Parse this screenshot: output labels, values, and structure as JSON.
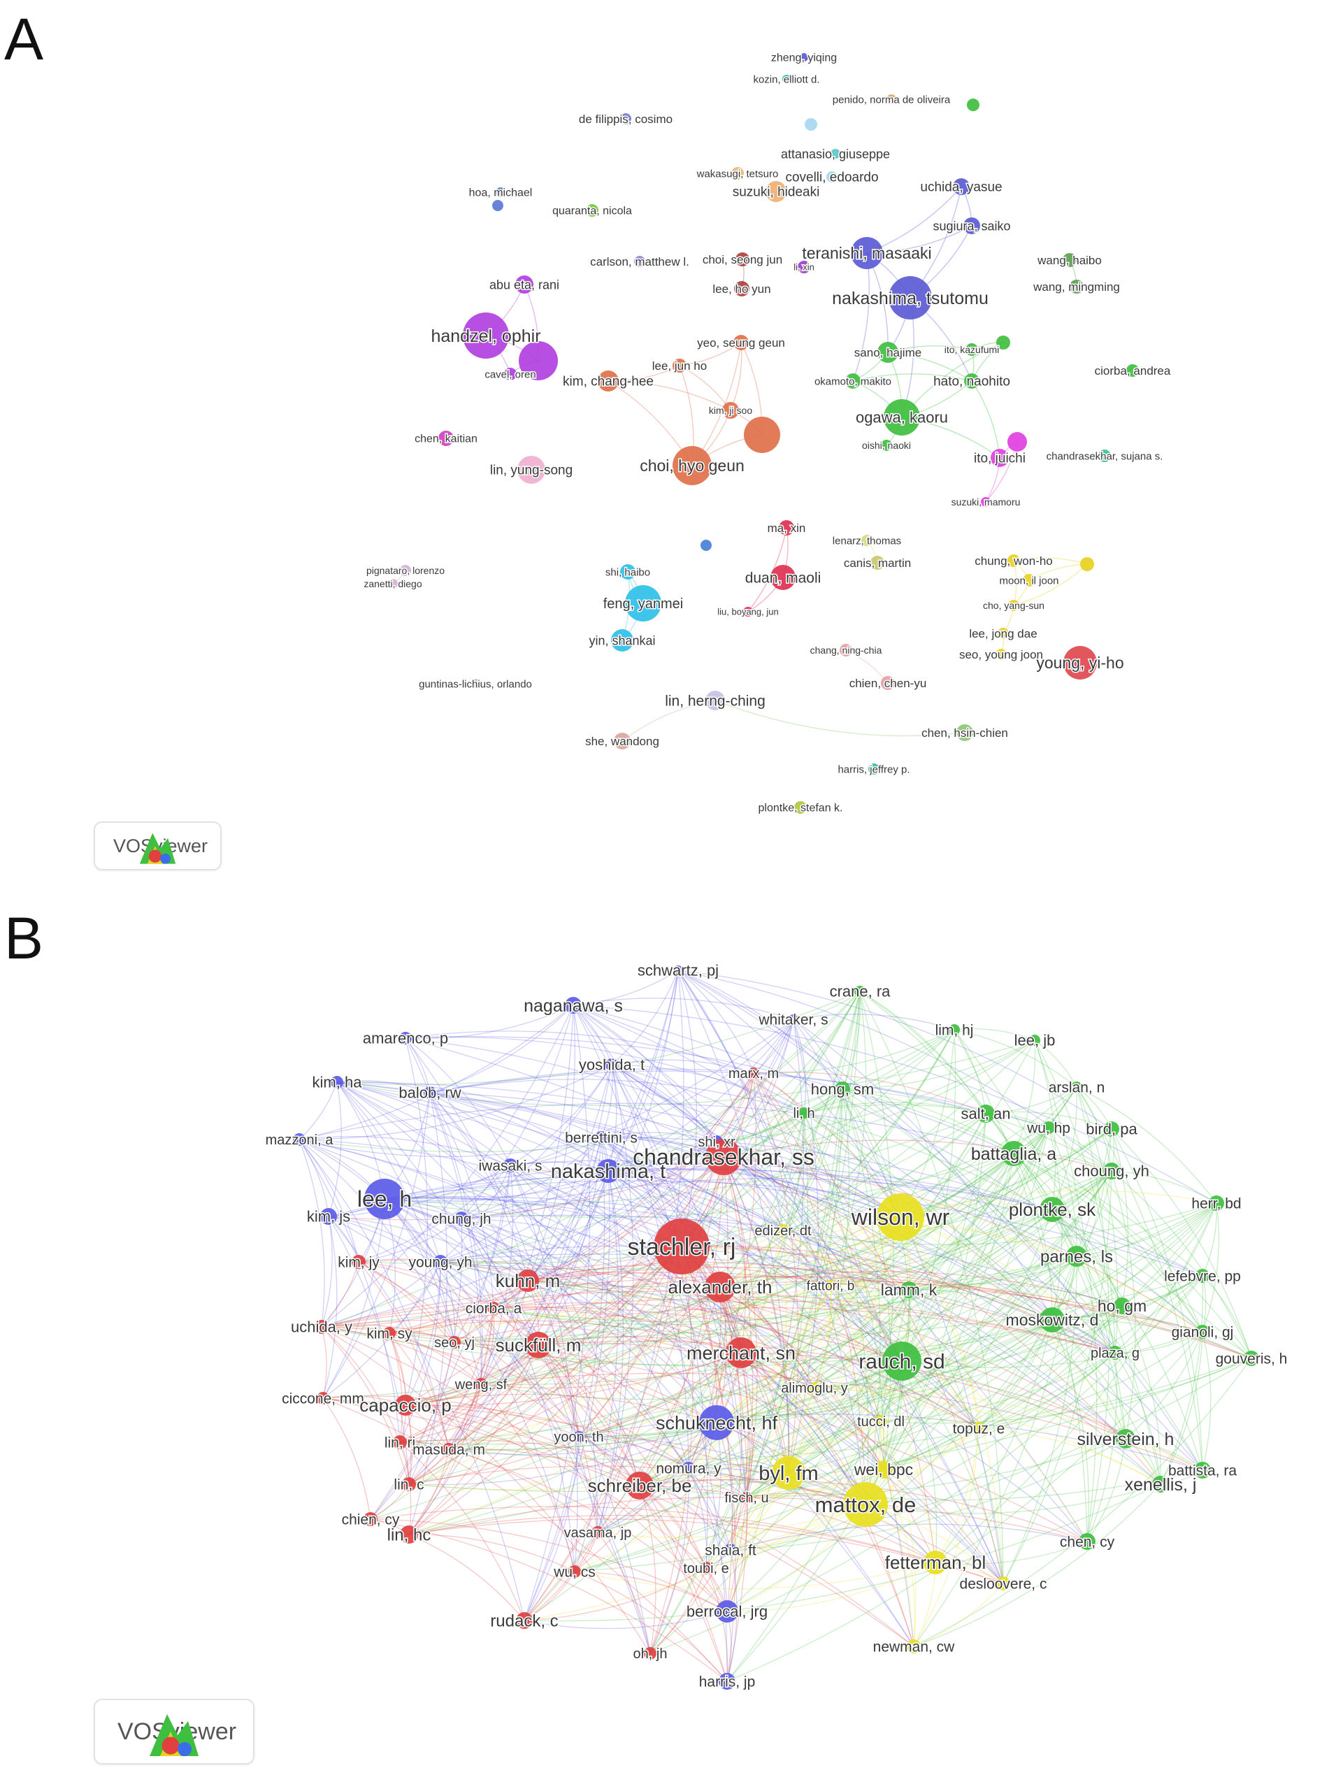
{
  "panels": [
    {
      "letter": "A",
      "logo_text": "VOSviewer",
      "nodes": [
        {
          "label": "zheng, yiqing",
          "c": "#5b5bd6"
        },
        {
          "label": "kozin, elliott d.",
          "c": "#2bb7b3"
        },
        {
          "label": "penido, norma de oliveira",
          "c": "#d8a860"
        },
        {
          "label": "",
          "c": "#3fbf3f"
        },
        {
          "label": "de filippis, cosimo",
          "c": "#7a7ad8"
        },
        {
          "label": "",
          "c": "#a6d8f0"
        },
        {
          "label": "attanasio, giuseppe",
          "c": "#5ec8c8"
        },
        {
          "label": "wakasugi, tetsuro",
          "c": "#e8b870"
        },
        {
          "label": "covelli, edoardo",
          "c": "#a6d8f0"
        },
        {
          "label": "suzuki, hideaki",
          "c": "#f0b070"
        },
        {
          "label": "hoa, michael",
          "c": "#5b7ad6"
        },
        {
          "label": "",
          "c": "#5b7ad6"
        },
        {
          "label": "quaranta, nicola",
          "c": "#7ac83a"
        },
        {
          "label": "uchida, yasue",
          "c": "#5b5bd6"
        },
        {
          "label": "sugiura, saiko",
          "c": "#5b5bd6"
        },
        {
          "label": "teranishi, masaaki",
          "c": "#5b5bd6"
        },
        {
          "label": "nakashima, tsutomu",
          "c": "#5b5bd6"
        },
        {
          "label": "li, xin",
          "c": "#a040d0"
        },
        {
          "label": "carlson, matthew l.",
          "c": "#a080d8"
        },
        {
          "label": "choi, seong jun",
          "c": "#b04040"
        },
        {
          "label": "lee, ho yun",
          "c": "#b04040"
        },
        {
          "label": "abu eta, rani",
          "c": "#b040e0"
        },
        {
          "label": "handzel, ophir",
          "c": "#b040e0"
        },
        {
          "label": "cavel, oren",
          "c": "#b040e0"
        },
        {
          "label": "",
          "c": "#b040e0"
        },
        {
          "label": "wang, haibo",
          "c": "#5ea050"
        },
        {
          "label": "wang, mingming",
          "c": "#5ea050"
        },
        {
          "label": "yeo, seung geun",
          "c": "#e0704a"
        },
        {
          "label": "lee, jun ho",
          "c": "#e0704a"
        },
        {
          "label": "kim, chang-hee",
          "c": "#e0704a"
        },
        {
          "label": "kim, ji soo",
          "c": "#e0704a"
        },
        {
          "label": "choi, hyo geun",
          "c": "#e0704a"
        },
        {
          "label": "",
          "c": "#e0704a"
        },
        {
          "label": "sano, hajime",
          "c": "#3fbf3f"
        },
        {
          "label": "ito, kazufumi",
          "c": "#3fbf3f"
        },
        {
          "label": "okamoto, makito",
          "c": "#3fbf3f"
        },
        {
          "label": "hato, naohito",
          "c": "#3fbf3f"
        },
        {
          "label": "ogawa, kaoru",
          "c": "#3fbf3f"
        },
        {
          "label": "oishi, naoki",
          "c": "#3fbf3f"
        },
        {
          "label": "",
          "c": "#3fbf3f"
        },
        {
          "label": "ciorba, andrea",
          "c": "#3fbf3f"
        },
        {
          "label": "chen, kaitian",
          "c": "#d040c0"
        },
        {
          "label": "lin, yung-song",
          "c": "#f0b0d0"
        },
        {
          "label": "ito, juichi",
          "c": "#e040e0"
        },
        {
          "label": "",
          "c": "#e040e0"
        },
        {
          "label": "chandrasekhar, sujana s.",
          "c": "#3fc09a"
        },
        {
          "label": "suzuki, mamoru",
          "c": "#e040e0"
        },
        {
          "label": "ma, xin",
          "c": "#e03050"
        },
        {
          "label": "duan, maoli",
          "c": "#e03050"
        },
        {
          "label": "liu, boyang, jun",
          "c": "#e03050"
        },
        {
          "label": "lenarz, thomas",
          "c": "#d8d880"
        },
        {
          "label": "canis, martin",
          "c": "#c8c870"
        },
        {
          "label": "chung, won-ho",
          "c": "#e8d020"
        },
        {
          "label": "moon, il joon",
          "c": "#e8d020"
        },
        {
          "label": "",
          "c": "#e8d020"
        },
        {
          "label": "cho, yang-sun",
          "c": "#e8d020"
        },
        {
          "label": "lee, jong dae",
          "c": "#e8d020"
        },
        {
          "label": "seo, young joon",
          "c": "#e8d020"
        },
        {
          "label": "pignataro, lorenzo",
          "c": "#d8b0d8"
        },
        {
          "label": "zanetti, diego",
          "c": "#d8b0d8"
        },
        {
          "label": "shi, haibo",
          "c": "#30c0e8"
        },
        {
          "label": "feng, yanmei",
          "c": "#30c0e8"
        },
        {
          "label": "yin, shankai",
          "c": "#30c0e8"
        },
        {
          "label": "",
          "c": "#4a80d8"
        },
        {
          "label": "chang, ning-chia",
          "c": "#e8a0a0"
        },
        {
          "label": "chien, chen-yu",
          "c": "#e8a0a0"
        },
        {
          "label": "young, yi-ho",
          "c": "#e04850"
        },
        {
          "label": "guntinas-lichius, orlando",
          "c": "#d8b0d8"
        },
        {
          "label": "lin, herng-ching",
          "c": "#c8c0e8"
        },
        {
          "label": "she, wandong",
          "c": "#d8a8a0"
        },
        {
          "label": "chen, hsin-chien",
          "c": "#8ac870"
        },
        {
          "label": "harris, jeffrey p.",
          "c": "#30c0b0"
        },
        {
          "label": "plontke, stefan k.",
          "c": "#b0c840"
        }
      ]
    },
    {
      "letter": "B",
      "logo_text": "VOSviewer",
      "nodes": [
        {
          "label": "schwartz, pj",
          "c": "#5b5be8"
        },
        {
          "label": "crane, ra",
          "c": "#3fbf3f"
        },
        {
          "label": "naganawa, s",
          "c": "#5b5be8"
        },
        {
          "label": "whitaker, s",
          "c": "#5b5be8"
        },
        {
          "label": "lim, hj",
          "c": "#3fbf3f"
        },
        {
          "label": "amarenco, p",
          "c": "#5b5be8"
        },
        {
          "label": "lee, jb",
          "c": "#3fbf3f"
        },
        {
          "label": "yoshida, t",
          "c": "#5b5be8"
        },
        {
          "label": "marx, m",
          "c": "#e04040"
        },
        {
          "label": "hong, sm",
          "c": "#3fbf3f"
        },
        {
          "label": "arslan, n",
          "c": "#3fbf3f"
        },
        {
          "label": "kim, ha",
          "c": "#5b5be8"
        },
        {
          "label": "balob, rw",
          "c": "#5b5be8"
        },
        {
          "label": "li, h",
          "c": "#3fbf3f"
        },
        {
          "label": "salt, an",
          "c": "#3fbf3f"
        },
        {
          "label": "berrettini, s",
          "c": "#5b5be8"
        },
        {
          "label": "wu, hp",
          "c": "#3fbf3f"
        },
        {
          "label": "bird, pa",
          "c": "#3fbf3f"
        },
        {
          "label": "shi, xr",
          "c": "#5b5be8"
        },
        {
          "label": "mazzoni, a",
          "c": "#5b5be8"
        },
        {
          "label": "chandrasekhar, ss",
          "c": "#e04040"
        },
        {
          "label": "iwasaki, s",
          "c": "#5b5be8"
        },
        {
          "label": "nakashima, t",
          "c": "#5b5be8"
        },
        {
          "label": "battaglia, a",
          "c": "#3fbf3f"
        },
        {
          "label": "choung, yh",
          "c": "#3fbf3f"
        },
        {
          "label": "lee, h",
          "c": "#5b5be8"
        },
        {
          "label": "kim, js",
          "c": "#5b5be8"
        },
        {
          "label": "chung, jh",
          "c": "#5b5be8"
        },
        {
          "label": "wilson, wr",
          "c": "#e8e020"
        },
        {
          "label": "plontke, sk",
          "c": "#3fbf3f"
        },
        {
          "label": "herr, bd",
          "c": "#3fbf3f"
        },
        {
          "label": "edizer, dt",
          "c": "#e8e020"
        },
        {
          "label": "stachler, rj",
          "c": "#e04040"
        },
        {
          "label": "parnes, ls",
          "c": "#3fbf3f"
        },
        {
          "label": "kim, jy",
          "c": "#e04040"
        },
        {
          "label": "young, yh",
          "c": "#5b5be8"
        },
        {
          "label": "lefebvre, pp",
          "c": "#3fbf3f"
        },
        {
          "label": "kuhn, m",
          "c": "#e04040"
        },
        {
          "label": "fattori, b",
          "c": "#e8e020"
        },
        {
          "label": "alexander, th",
          "c": "#e04040"
        },
        {
          "label": "lamm, k",
          "c": "#3fbf3f"
        },
        {
          "label": "ho, gm",
          "c": "#3fbf3f"
        },
        {
          "label": "ciorba, a",
          "c": "#e04040"
        },
        {
          "label": "uchida, y",
          "c": "#e04040"
        },
        {
          "label": "kim, sy",
          "c": "#e04040"
        },
        {
          "label": "moskowitz, d",
          "c": "#3fbf3f"
        },
        {
          "label": "gianoli, gj",
          "c": "#3fbf3f"
        },
        {
          "label": "seo, yj",
          "c": "#e04040"
        },
        {
          "label": "suckfüll, m",
          "c": "#e04040"
        },
        {
          "label": "merchant, sn",
          "c": "#e04040"
        },
        {
          "label": "rauch, sd",
          "c": "#3fbf3f"
        },
        {
          "label": "plaza, g",
          "c": "#3fbf3f"
        },
        {
          "label": "gouveris, h",
          "c": "#3fbf3f"
        },
        {
          "label": "weng, sf",
          "c": "#e04040"
        },
        {
          "label": "alimoglu, y",
          "c": "#e8e020"
        },
        {
          "label": "ciccone, mm",
          "c": "#e04040"
        },
        {
          "label": "capaccio, p",
          "c": "#e04040"
        },
        {
          "label": "tucci, dl",
          "c": "#e8e020"
        },
        {
          "label": "schuknecht, hf",
          "c": "#5b5be8"
        },
        {
          "label": "topuz, e",
          "c": "#e8e020"
        },
        {
          "label": "silverstein, h",
          "c": "#3fbf3f"
        },
        {
          "label": "yoon, th",
          "c": "#5b5be8"
        },
        {
          "label": "lin, rj",
          "c": "#e04040"
        },
        {
          "label": "masuda, m",
          "c": "#e04040"
        },
        {
          "label": "battista, ra",
          "c": "#3fbf3f"
        },
        {
          "label": "nomura, y",
          "c": "#5b5be8"
        },
        {
          "label": "byl, fm",
          "c": "#e8e020"
        },
        {
          "label": "wei, bpc",
          "c": "#e8e020"
        },
        {
          "label": "xenellis, j",
          "c": "#3fbf3f"
        },
        {
          "label": "lin, c",
          "c": "#e04040"
        },
        {
          "label": "schreiber, be",
          "c": "#e04040"
        },
        {
          "label": "chien, cy",
          "c": "#e04040"
        },
        {
          "label": "fisch, u",
          "c": "#e04040"
        },
        {
          "label": "mattox, de",
          "c": "#e8e020"
        },
        {
          "label": "vasama, jp",
          "c": "#e04040"
        },
        {
          "label": "lin, hc",
          "c": "#e04040"
        },
        {
          "label": "shaia, ft",
          "c": "#5b5be8"
        },
        {
          "label": "chen, cy",
          "c": "#3fbf3f"
        },
        {
          "label": "toubi, e",
          "c": "#e04040"
        },
        {
          "label": "fetterman, bl",
          "c": "#e8e020"
        },
        {
          "label": "wu, cs",
          "c": "#e04040"
        },
        {
          "label": "desloovere, c",
          "c": "#e8e020"
        },
        {
          "label": "berrocal, jrg",
          "c": "#5b5be8"
        },
        {
          "label": "rudack, c",
          "c": "#e04040"
        },
        {
          "label": "newman, cw",
          "c": "#e8e020"
        },
        {
          "label": "oh, jh",
          "c": "#e04040"
        },
        {
          "label": "harris, jp",
          "c": "#5b5be8"
        }
      ]
    }
  ]
}
